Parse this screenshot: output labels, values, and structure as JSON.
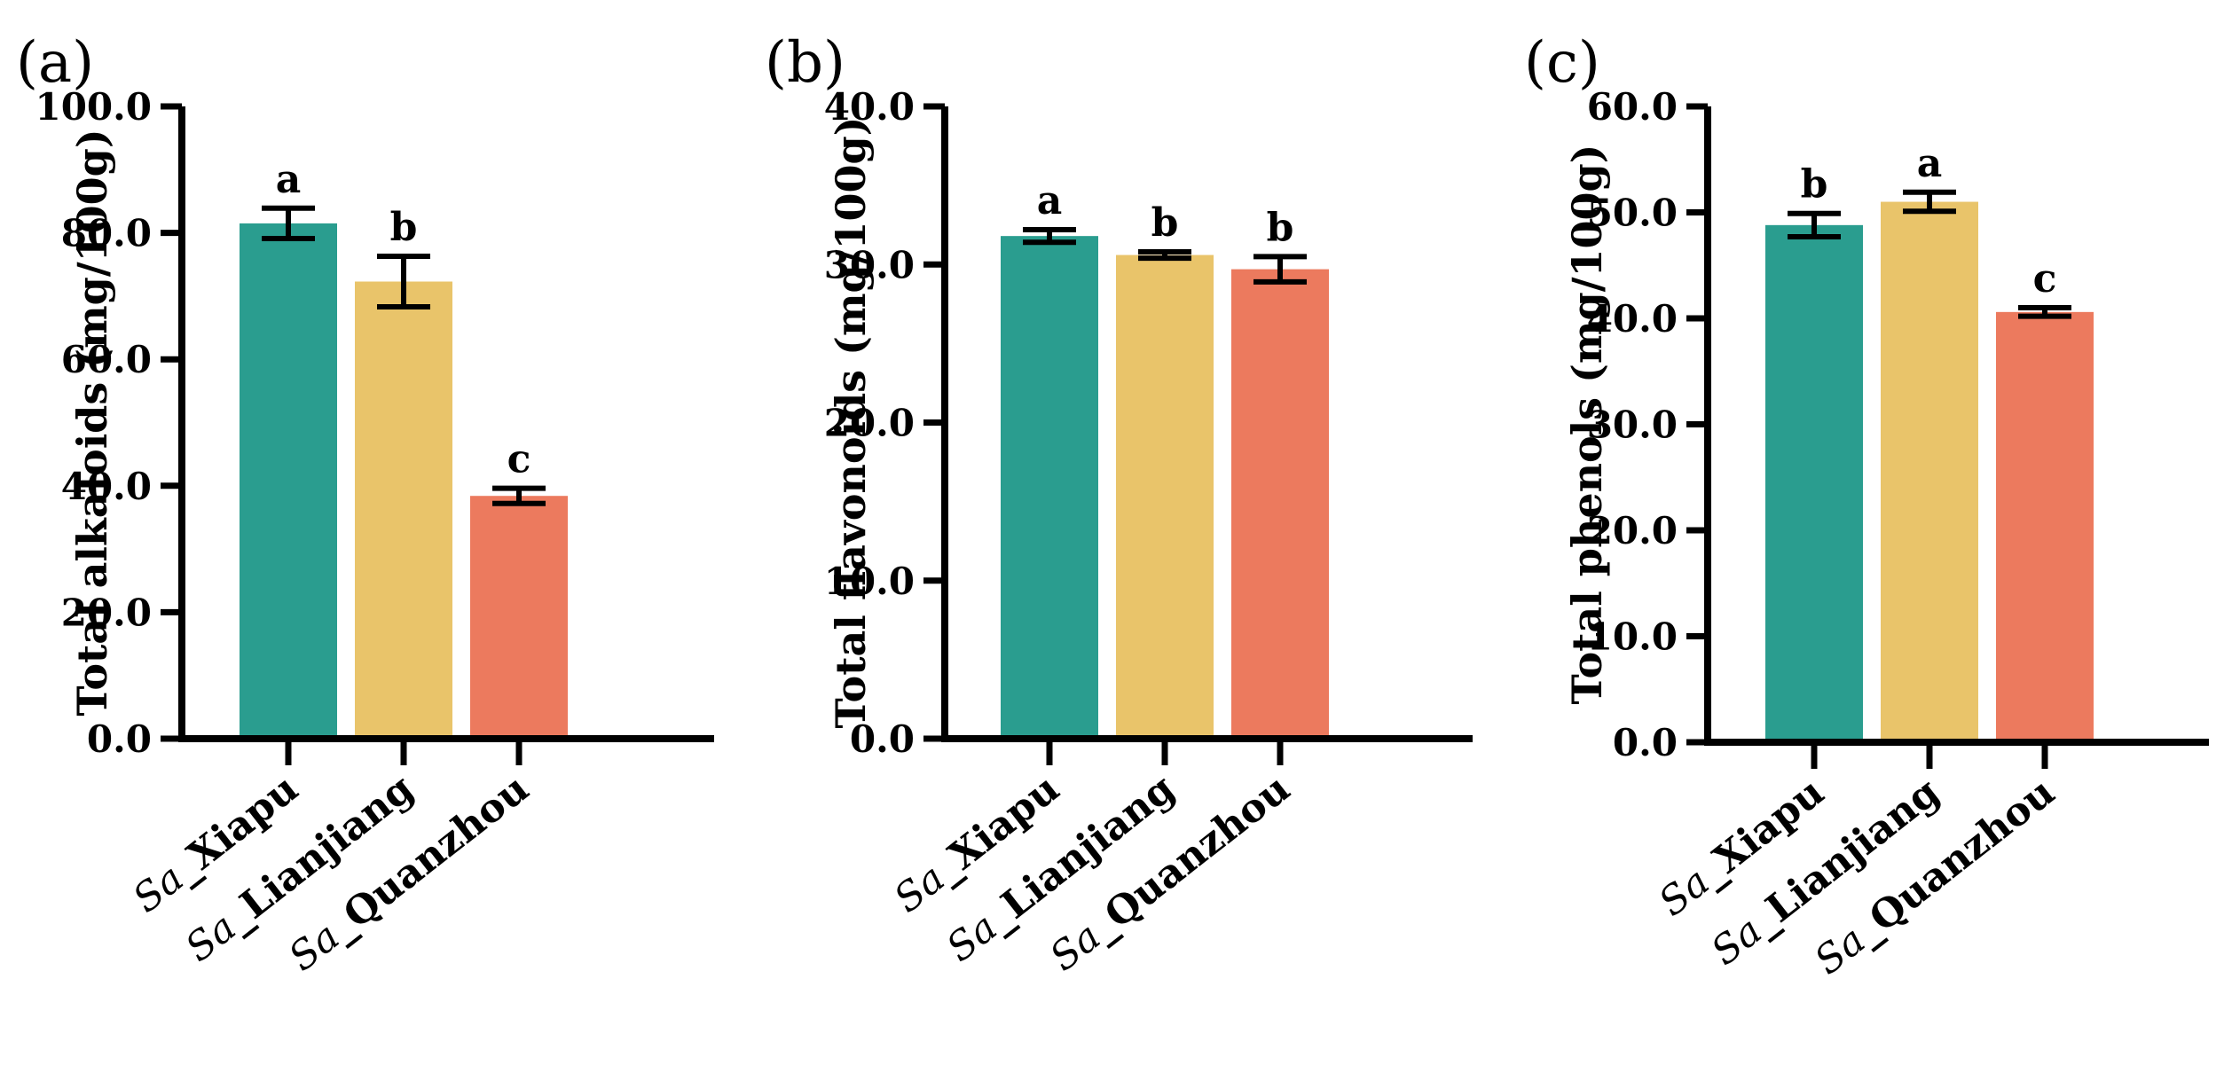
{
  "colors": {
    "Sa_Xiapu": "#2a9d8f",
    "Sa_Lianjiang": "#e9c46a",
    "Sa_Quanzhou": "#ec7a5e",
    "axis": "#000000"
  },
  "chart_data": [
    {
      "type": "bar",
      "panel": "(a)",
      "ylabel": "Total alkaloids (mg/100g)",
      "ylim": [
        0,
        100
      ],
      "yticks": [
        "0.0",
        "20.0",
        "40.0",
        "60.0",
        "80.0",
        "100.0"
      ],
      "categories": [
        {
          "prefix": "Sa",
          "name": "_Xiapu"
        },
        {
          "prefix": "Sa",
          "name": "_Lianjiang"
        },
        {
          "prefix": "Sa",
          "name": "_Quanzhou"
        }
      ],
      "values": [
        81.5,
        72.3,
        38.4
      ],
      "errors": [
        2.4,
        4.0,
        1.2
      ],
      "significance": [
        "a",
        "b",
        "c"
      ]
    },
    {
      "type": "bar",
      "panel": "(b)",
      "ylabel": "Total flavonoids (mg/100g)",
      "ylim": [
        0,
        40
      ],
      "yticks": [
        "0.0",
        "10.0",
        "20.0",
        "30.0",
        "40.0"
      ],
      "categories": [
        {
          "prefix": "Sa",
          "name": "_Xiapu"
        },
        {
          "prefix": "Sa",
          "name": "_Lianjiang"
        },
        {
          "prefix": "Sa",
          "name": "_Quanzhou"
        }
      ],
      "values": [
        31.8,
        30.6,
        29.7
      ],
      "errors": [
        0.4,
        0.2,
        0.8
      ],
      "significance": [
        "a",
        "b",
        "b"
      ]
    },
    {
      "type": "bar",
      "panel": "(c)",
      "ylabel": "Total phenols (mg/100g)",
      "ylim": [
        0,
        60
      ],
      "yticks": [
        "0.0",
        "10.0",
        "20.0",
        "30.0",
        "40.0",
        "50.0",
        "60.0"
      ],
      "categories": [
        {
          "prefix": "Sa",
          "name": "_Xiapu"
        },
        {
          "prefix": "Sa",
          "name": "_Lianjiang"
        },
        {
          "prefix": "Sa",
          "name": "_Quanzhou"
        }
      ],
      "values": [
        48.8,
        51.0,
        40.6
      ],
      "errors": [
        1.1,
        0.9,
        0.4
      ],
      "significance": [
        "b",
        "a",
        "c"
      ]
    }
  ]
}
